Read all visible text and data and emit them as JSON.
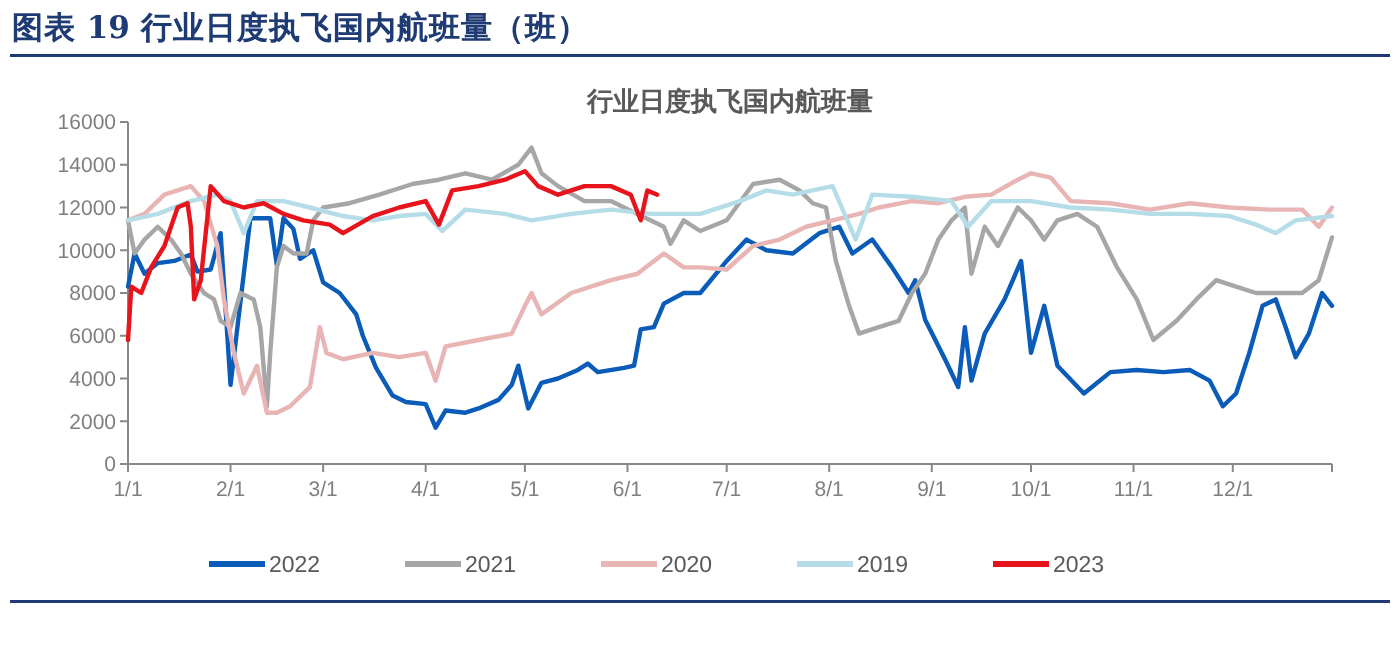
{
  "chart_data": {
    "type": "line",
    "title": "图表 19  行业日度执飞国内航班量（班）",
    "subtitle": "行业日度执飞国内航班量",
    "xlim": [
      "--01-01",
      "--12-31"
    ],
    "xticks": [
      {
        "value": "--01-01",
        "label": "1/1"
      },
      {
        "value": "--02-01",
        "label": "2/1"
      },
      {
        "value": "--03-01",
        "label": "3/1"
      },
      {
        "value": "--04-01",
        "label": "4/1"
      },
      {
        "value": "--05-01",
        "label": "5/1"
      },
      {
        "value": "--06-01",
        "label": "6/1"
      },
      {
        "value": "--07-01",
        "label": "7/1"
      },
      {
        "value": "--08-01",
        "label": "8/1"
      },
      {
        "value": "--09-01",
        "label": "9/1"
      },
      {
        "value": "--10-01",
        "label": "10/1"
      },
      {
        "value": "--11-01",
        "label": "11/1"
      },
      {
        "value": "--12-01",
        "label": "12/1"
      }
    ],
    "ylim": [
      0,
      16000
    ],
    "yticks": [
      0,
      2000,
      4000,
      6000,
      8000,
      10000,
      12000,
      14000,
      16000
    ],
    "grid": false,
    "legend": "bottom",
    "marker": "none",
    "line_style": "solid",
    "series": [
      {
        "name": "2022",
        "color": "#0a5cb8",
        "x": [
          "--01-01",
          "--01-03",
          "--01-06",
          "--01-10",
          "--01-15",
          "--01-20",
          "--01-22",
          "--01-26",
          "--01-29",
          "--02-01",
          "--02-07",
          "--02-13",
          "--02-15",
          "--02-17",
          "--02-20",
          "--02-22",
          "--02-26",
          "--03-01",
          "--03-06",
          "--03-11",
          "--03-13",
          "--03-17",
          "--03-22",
          "--03-26",
          "--04-01",
          "--04-04",
          "--04-07",
          "--04-13",
          "--04-17",
          "--04-23",
          "--04-27",
          "--04-29",
          "--05-02",
          "--05-06",
          "--05-11",
          "--05-17",
          "--05-20",
          "--05-23",
          "--05-31",
          "--06-03",
          "--06-05",
          "--06-09",
          "--06-12",
          "--06-18",
          "--06-23",
          "--07-01",
          "--07-07",
          "--07-13",
          "--07-21",
          "--07-29",
          "--08-04",
          "--08-08",
          "--08-14",
          "--08-20",
          "--08-25",
          "--08-27",
          "--08-30",
          "--09-05",
          "--09-09",
          "--09-11",
          "--09-13",
          "--09-17",
          "--09-23",
          "--09-28",
          "--10-01",
          "--10-05",
          "--10-09",
          "--10-17",
          "--10-25",
          "--11-02",
          "--11-10",
          "--11-18",
          "--11-24",
          "--11-28",
          "--12-02",
          "--12-06",
          "--12-10",
          "--12-14",
          "--12-17",
          "--12-20",
          "--12-24",
          "--12-28",
          "--12-31"
        ],
        "values": [
          8300,
          9850,
          8900,
          9400,
          9500,
          9800,
          9000,
          9100,
          10800,
          3700,
          11500,
          11500,
          9300,
          11500,
          11000,
          9600,
          10000,
          8500,
          8000,
          7000,
          6000,
          4500,
          3200,
          2900,
          2800,
          1700,
          2500,
          2400,
          2600,
          3000,
          3700,
          4600,
          2600,
          3800,
          4000,
          4400,
          4700,
          4300,
          4500,
          4600,
          6300,
          6400,
          7500,
          8000,
          8000,
          9500,
          10500,
          10000,
          9850,
          10800,
          11100,
          9850,
          10500,
          9200,
          8000,
          8600,
          6750,
          4900,
          3600,
          6400,
          3900,
          6100,
          7700,
          9500,
          5200,
          7400,
          4600,
          3300,
          4300,
          4400,
          4300,
          4400,
          3900,
          2700,
          3300,
          5200,
          7400,
          7700,
          6400,
          5000,
          6100,
          8000,
          7400
        ]
      },
      {
        "name": "2021",
        "color": "#a6a6a6",
        "x": [
          "--01-01",
          "--01-03",
          "--01-06",
          "--01-10",
          "--01-14",
          "--01-17",
          "--01-20",
          "--01-24",
          "--01-27",
          "--01-29",
          "--02-01",
          "--02-04",
          "--02-08",
          "--02-10",
          "--02-12",
          "--02-13",
          "--02-15",
          "--02-17",
          "--02-20",
          "--02-24",
          "--02-26",
          "--03-01",
          "--03-09",
          "--03-18",
          "--03-28",
          "--04-05",
          "--04-13",
          "--04-21",
          "--04-29",
          "--05-03",
          "--05-06",
          "--05-11",
          "--05-19",
          "--05-27",
          "--06-04",
          "--06-12",
          "--06-14",
          "--06-18",
          "--06-23",
          "--07-01",
          "--07-09",
          "--07-17",
          "--07-23",
          "--07-27",
          "--07-31",
          "--08-03",
          "--08-07",
          "--08-10",
          "--08-16",
          "--08-22",
          "--08-26",
          "--08-30",
          "--09-03",
          "--09-07",
          "--09-11",
          "--09-13",
          "--09-17",
          "--09-21",
          "--09-27",
          "--10-01",
          "--10-05",
          "--10-09",
          "--10-15",
          "--10-21",
          "--10-27",
          "--11-02",
          "--11-07",
          "--11-14",
          "--11-20",
          "--11-26",
          "--12-02",
          "--12-08",
          "--12-16",
          "--12-22",
          "--12-27",
          "--12-31"
        ],
        "values": [
          11400,
          9850,
          10500,
          11100,
          10500,
          9850,
          8900,
          8000,
          7700,
          6700,
          6400,
          8000,
          7700,
          6400,
          2700,
          5200,
          9200,
          10200,
          9850,
          9850,
          11400,
          12000,
          12200,
          12600,
          13100,
          13300,
          13600,
          13300,
          14000,
          14800,
          13600,
          13000,
          12300,
          12300,
          11700,
          11100,
          10300,
          11400,
          10900,
          11400,
          13100,
          13300,
          12800,
          12200,
          12000,
          9500,
          7400,
          6100,
          6400,
          6700,
          8000,
          8900,
          10500,
          11400,
          12000,
          8900,
          11100,
          10200,
          12000,
          11400,
          10500,
          11400,
          11700,
          11100,
          9200,
          7700,
          5800,
          6700,
          7700,
          8600,
          8300,
          8000,
          8000,
          8000,
          8600,
          10600
        ]
      },
      {
        "name": "2020",
        "color": "#e8b4b4",
        "x": [
          "--01-01",
          "--01-06",
          "--01-12",
          "--01-20",
          "--01-24",
          "--01-28",
          "--01-30",
          "--02-02",
          "--02-05",
          "--02-09",
          "--02-12",
          "--02-15",
          "--02-19",
          "--02-25",
          "--02-28",
          "--03-02",
          "--03-07",
          "--03-16",
          "--03-24",
          "--04-01",
          "--04-04",
          "--04-07",
          "--04-17",
          "--04-27",
          "--05-01",
          "--05-03",
          "--05-06",
          "--05-15",
          "--05-27",
          "--06-04",
          "--06-12",
          "--06-18",
          "--06-23",
          "--07-01",
          "--07-09",
          "--07-17",
          "--07-25",
          "--08-02",
          "--08-10",
          "--08-16",
          "--08-26",
          "--09-03",
          "--09-11",
          "--09-19",
          "--09-27",
          "--10-01",
          "--10-07",
          "--10-13",
          "--10-25",
          "--11-06",
          "--11-18",
          "--11-30",
          "--12-12",
          "--12-22",
          "--12-27",
          "--12-31"
        ],
        "values": [
          11400,
          11700,
          12600,
          13000,
          12300,
          10200,
          7700,
          5200,
          3300,
          4600,
          2400,
          2400,
          2700,
          3600,
          6400,
          5200,
          4900,
          5200,
          5000,
          5200,
          3900,
          5500,
          5800,
          6100,
          7400,
          8000,
          7000,
          8000,
          8600,
          8900,
          9850,
          9200,
          9200,
          9100,
          10200,
          10500,
          11100,
          11400,
          11700,
          12000,
          12300,
          12200,
          12500,
          12600,
          13300,
          13600,
          13400,
          12300,
          12200,
          11900,
          12200,
          12000,
          11900,
          11900,
          11100,
          12000
        ]
      },
      {
        "name": "2019",
        "color": "#b4dde8",
        "x": [
          "--01-01",
          "--01-10",
          "--01-20",
          "--01-28",
          "--02-01",
          "--02-05",
          "--02-09",
          "--02-17",
          "--02-25",
          "--03-07",
          "--03-16",
          "--03-24",
          "--04-01",
          "--04-06",
          "--04-13",
          "--04-25",
          "--05-03",
          "--05-15",
          "--05-27",
          "--06-08",
          "--06-23",
          "--07-05",
          "--07-13",
          "--07-21",
          "--08-02",
          "--08-09",
          "--08-14",
          "--08-26",
          "--09-07",
          "--09-12",
          "--09-19",
          "--10-01",
          "--10-13",
          "--10-25",
          "--11-06",
          "--11-18",
          "--11-30",
          "--12-08",
          "--12-14",
          "--12-20",
          "--12-31"
        ],
        "values": [
          11400,
          11700,
          12300,
          12600,
          12300,
          10800,
          12300,
          12300,
          12000,
          11600,
          11400,
          11600,
          11700,
          10900,
          11900,
          11700,
          11400,
          11700,
          11900,
          11700,
          11700,
          12300,
          12800,
          12600,
          13000,
          10500,
          12600,
          12500,
          12300,
          11100,
          12300,
          12300,
          12000,
          11900,
          11700,
          11700,
          11600,
          11200,
          10800,
          11400,
          11600
        ]
      },
      {
        "name": "2023",
        "color": "#e8141c",
        "x": [
          "--01-01",
          "--01-02",
          "--01-05",
          "--01-08",
          "--01-12",
          "--01-16",
          "--01-19",
          "--01-20",
          "--01-21",
          "--01-23",
          "--01-26",
          "--01-30",
          "--02-05",
          "--02-11",
          "--02-17",
          "--02-23",
          "--03-03",
          "--03-07",
          "--03-16",
          "--03-24",
          "--04-01",
          "--04-05",
          "--04-09",
          "--04-17",
          "--04-25",
          "--05-01",
          "--05-05",
          "--05-11",
          "--05-19",
          "--05-27",
          "--06-02",
          "--06-05",
          "--06-07",
          "--06-10"
        ],
        "values": [
          5800,
          8300,
          8000,
          9200,
          10200,
          12000,
          12200,
          11100,
          7700,
          8600,
          13000,
          12300,
          12000,
          12200,
          11700,
          11400,
          11200,
          10800,
          11600,
          12000,
          12300,
          11200,
          12800,
          13000,
          13300,
          13700,
          13000,
          12600,
          13000,
          13000,
          12600,
          11400,
          12800,
          12600
        ]
      }
    ]
  }
}
